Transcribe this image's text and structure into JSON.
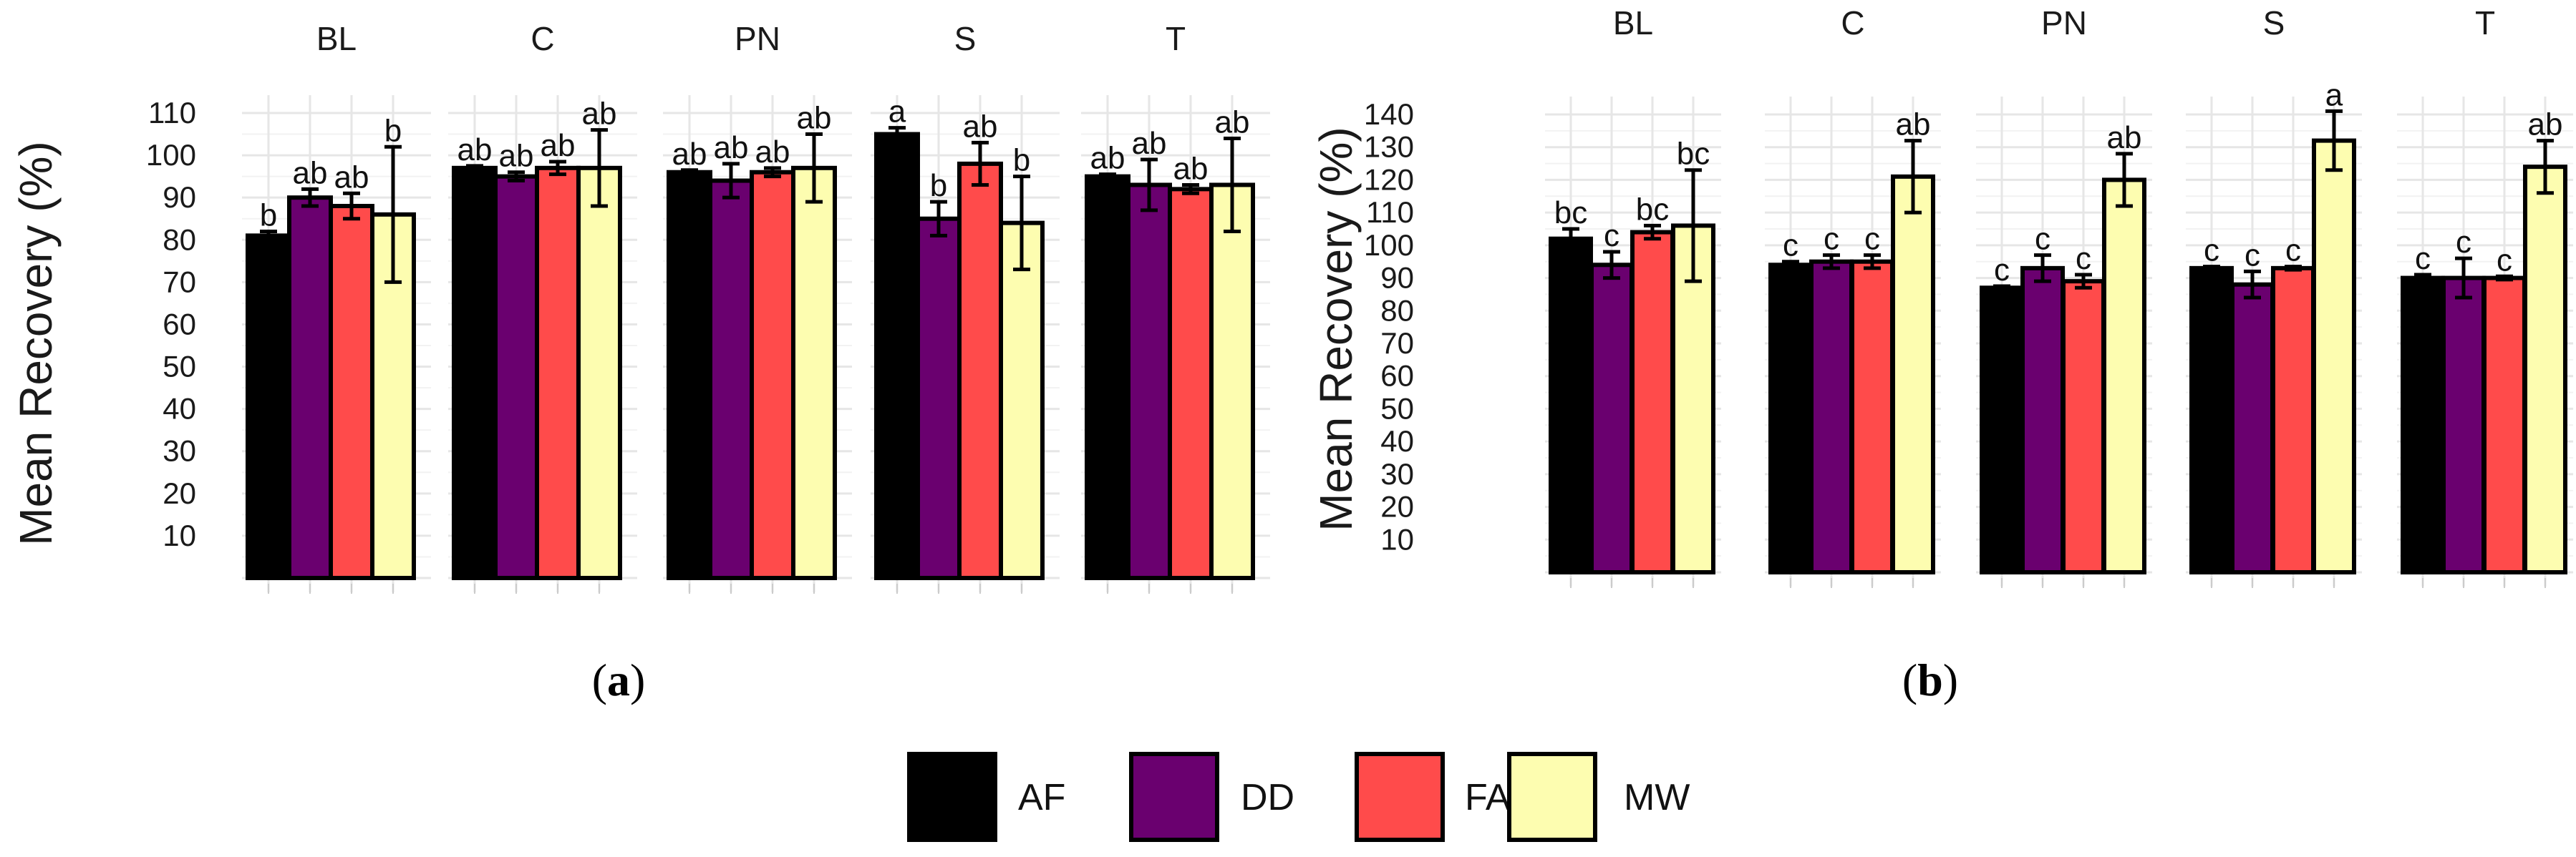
{
  "legend": {
    "entries": [
      {
        "label": "AF",
        "color": "#000000"
      },
      {
        "label": "DD",
        "color": "#6a006f"
      },
      {
        "label": "FA",
        "color": "#ff4b4b"
      },
      {
        "label": "MW",
        "color": "#fdfdb0"
      }
    ]
  },
  "chart_data": [
    {
      "type": "bar",
      "panel_label": "a",
      "ylabel": "Mean Recovery (%)",
      "ylim": [
        0,
        110
      ],
      "yticks": [
        10,
        20,
        30,
        40,
        50,
        60,
        70,
        80,
        90,
        100,
        110
      ],
      "series_names": [
        "AF",
        "DD",
        "FA",
        "MW"
      ],
      "facets": [
        {
          "name": "BL",
          "values": [
            81,
            90,
            88,
            86
          ],
          "errors": [
            1,
            2,
            3,
            16
          ],
          "letters": [
            "b",
            "ab",
            "ab",
            "b"
          ]
        },
        {
          "name": "C",
          "values": [
            97,
            95,
            97,
            97
          ],
          "errors": [
            0.5,
            1,
            1.5,
            9
          ],
          "letters": [
            "ab",
            "ab",
            "ab",
            "ab"
          ]
        },
        {
          "name": "PN",
          "values": [
            96,
            94,
            96,
            97
          ],
          "errors": [
            0.5,
            4,
            1,
            8
          ],
          "letters": [
            "ab",
            "ab",
            "ab",
            "ab"
          ]
        },
        {
          "name": "S",
          "values": [
            105,
            85,
            98,
            84
          ],
          "errors": [
            1.5,
            4,
            5,
            11
          ],
          "letters": [
            "a",
            "b",
            "ab",
            "b"
          ]
        },
        {
          "name": "T",
          "values": [
            95,
            93,
            92,
            93
          ],
          "errors": [
            0.5,
            6,
            1,
            11
          ],
          "letters": [
            "ab",
            "ab",
            "ab",
            "ab"
          ]
        }
      ]
    },
    {
      "type": "bar",
      "panel_label": "b",
      "ylabel": "Mean Recovery (%)",
      "ylim": [
        0,
        140
      ],
      "yticks": [
        10,
        20,
        30,
        40,
        50,
        60,
        70,
        80,
        90,
        100,
        110,
        120,
        130,
        140
      ],
      "series_names": [
        "AF",
        "DD",
        "FA",
        "MW"
      ],
      "facets": [
        {
          "name": "BL",
          "values": [
            102,
            94,
            104,
            106
          ],
          "errors": [
            3,
            4,
            2,
            17
          ],
          "letters": [
            "bc",
            "c",
            "bc",
            "bc"
          ]
        },
        {
          "name": "C",
          "values": [
            94,
            95,
            95,
            121
          ],
          "errors": [
            1,
            2,
            2,
            11
          ],
          "letters": [
            "c",
            "c",
            "c",
            "ab"
          ]
        },
        {
          "name": "PN",
          "values": [
            87,
            93,
            89,
            120
          ],
          "errors": [
            0.5,
            4,
            2,
            8
          ],
          "letters": [
            "c",
            "c",
            "c",
            "ab"
          ]
        },
        {
          "name": "S",
          "values": [
            93,
            88,
            93,
            132
          ],
          "errors": [
            0.5,
            4,
            0.5,
            9
          ],
          "letters": [
            "c",
            "c",
            "c",
            "a"
          ]
        },
        {
          "name": "T",
          "values": [
            90,
            90,
            90,
            124
          ],
          "errors": [
            1,
            6,
            0.5,
            8
          ],
          "letters": [
            "c",
            "c",
            "c",
            "ab"
          ]
        }
      ]
    }
  ]
}
